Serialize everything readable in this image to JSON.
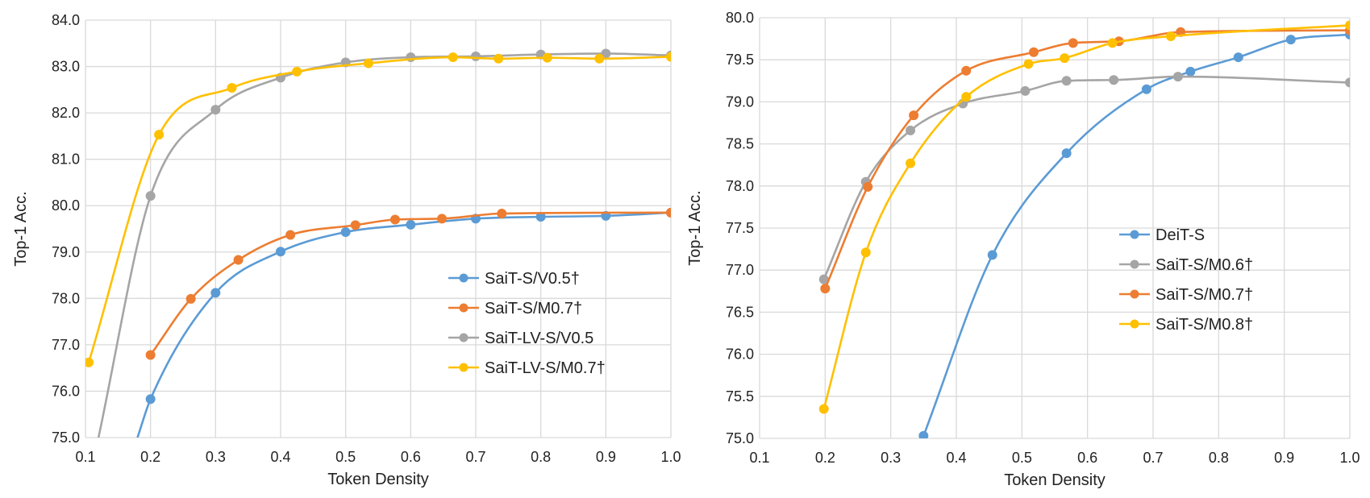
{
  "chart_data": [
    {
      "type": "line",
      "title": "",
      "xlabel": "Token Density",
      "ylabel": "Top-1 Acc.",
      "xlim": [
        0.1,
        1.0
      ],
      "ylim": [
        75.0,
        84.0
      ],
      "xticks": [
        "0.1",
        "0.2",
        "0.3",
        "0.4",
        "0.5",
        "0.6",
        "0.7",
        "0.8",
        "0.9",
        "1.0"
      ],
      "yticks": [
        "75.0",
        "76.0",
        "77.0",
        "78.0",
        "79.0",
        "80.0",
        "81.0",
        "82.0",
        "83.0",
        "84.0"
      ],
      "grid": true,
      "legend_position": "center-right",
      "series": [
        {
          "name": "SaiT-S/V0.5†",
          "color": "#5B9BD5",
          "points": [
            [
              0.2,
              75.83
            ],
            [
              0.3,
              78.12
            ],
            [
              0.4,
              79.01
            ],
            [
              0.5,
              79.43
            ],
            [
              0.6,
              79.59
            ],
            [
              0.7,
              79.72
            ],
            [
              0.8,
              79.76
            ],
            [
              0.9,
              79.78
            ],
            [
              1.0,
              79.85
            ]
          ],
          "curve_start": [
            0.18,
            75.0
          ]
        },
        {
          "name": "SaiT-S/M0.7†",
          "color": "#ED7D31",
          "points": [
            [
              0.2,
              76.78
            ],
            [
              0.262,
              77.99
            ],
            [
              0.335,
              78.83
            ],
            [
              0.415,
              79.37
            ],
            [
              0.515,
              79.58
            ],
            [
              0.576,
              79.7
            ],
            [
              0.648,
              79.72
            ],
            [
              0.74,
              79.83
            ],
            [
              1.0,
              79.85
            ]
          ]
        },
        {
          "name": "SaiT-LV-S/V0.5",
          "color": "#A5A5A5",
          "points": [
            [
              0.2,
              80.21
            ],
            [
              0.3,
              82.07
            ],
            [
              0.4,
              82.76
            ],
            [
              0.5,
              83.09
            ],
            [
              0.6,
              83.2
            ],
            [
              0.7,
              83.22
            ],
            [
              0.8,
              83.26
            ],
            [
              0.9,
              83.28
            ],
            [
              1.0,
              83.24
            ]
          ],
          "curve_start": [
            0.12,
            75.0
          ]
        },
        {
          "name": "SaiT-LV-S/M0.7†",
          "color": "#FFC000",
          "points": [
            [
              0.105,
              76.62
            ],
            [
              0.213,
              81.53
            ],
            [
              0.325,
              82.54
            ],
            [
              0.425,
              82.89
            ],
            [
              0.535,
              83.07
            ],
            [
              0.665,
              83.2
            ],
            [
              0.735,
              83.17
            ],
            [
              0.81,
              83.19
            ],
            [
              0.89,
              83.17
            ],
            [
              1.0,
              83.21
            ]
          ]
        }
      ]
    },
    {
      "type": "line",
      "title": "",
      "xlabel": "Token Density",
      "ylabel": "Top-1 Acc.",
      "xlim": [
        0.1,
        1.0
      ],
      "ylim": [
        75.0,
        80.0
      ],
      "xticks": [
        "0.1",
        "0.2",
        "0.3",
        "0.4",
        "0.5",
        "0.6",
        "0.7",
        "0.8",
        "0.9",
        "1.0"
      ],
      "yticks": [
        "75.0",
        "75.5",
        "76.0",
        "76.5",
        "77.0",
        "77.5",
        "78.0",
        "78.5",
        "79.0",
        "79.5",
        "80.0"
      ],
      "grid": true,
      "legend_position": "center-right",
      "series": [
        {
          "name": "DeiT-S",
          "color": "#5B9BD5",
          "points": [
            [
              0.35,
              75.03
            ],
            [
              0.455,
              77.18
            ],
            [
              0.568,
              78.39
            ],
            [
              0.69,
              79.15
            ],
            [
              0.757,
              79.36
            ],
            [
              0.83,
              79.53
            ],
            [
              0.91,
              79.74
            ],
            [
              1.0,
              79.8
            ]
          ]
        },
        {
          "name": "SaiT-S/M0.6†",
          "color": "#A5A5A5",
          "points": [
            [
              0.198,
              76.89
            ],
            [
              0.262,
              78.05
            ],
            [
              0.33,
              78.66
            ],
            [
              0.41,
              78.98
            ],
            [
              0.505,
              79.13
            ],
            [
              0.568,
              79.25
            ],
            [
              0.64,
              79.26
            ],
            [
              0.738,
              79.3
            ],
            [
              1.0,
              79.23
            ]
          ]
        },
        {
          "name": "SaiT-S/M0.7†",
          "color": "#ED7D31",
          "points": [
            [
              0.2,
              76.78
            ],
            [
              0.265,
              77.99
            ],
            [
              0.335,
              78.84
            ],
            [
              0.415,
              79.37
            ],
            [
              0.518,
              79.59
            ],
            [
              0.578,
              79.7
            ],
            [
              0.648,
              79.72
            ],
            [
              0.742,
              79.83
            ],
            [
              1.0,
              79.85
            ]
          ]
        },
        {
          "name": "SaiT-S/M0.8†",
          "color": "#FFC000",
          "points": [
            [
              0.198,
              75.35
            ],
            [
              0.262,
              77.21
            ],
            [
              0.33,
              78.27
            ],
            [
              0.415,
              79.06
            ],
            [
              0.51,
              79.45
            ],
            [
              0.565,
              79.52
            ],
            [
              0.638,
              79.7
            ],
            [
              0.727,
              79.78
            ],
            [
              1.0,
              79.91
            ]
          ]
        }
      ]
    }
  ]
}
